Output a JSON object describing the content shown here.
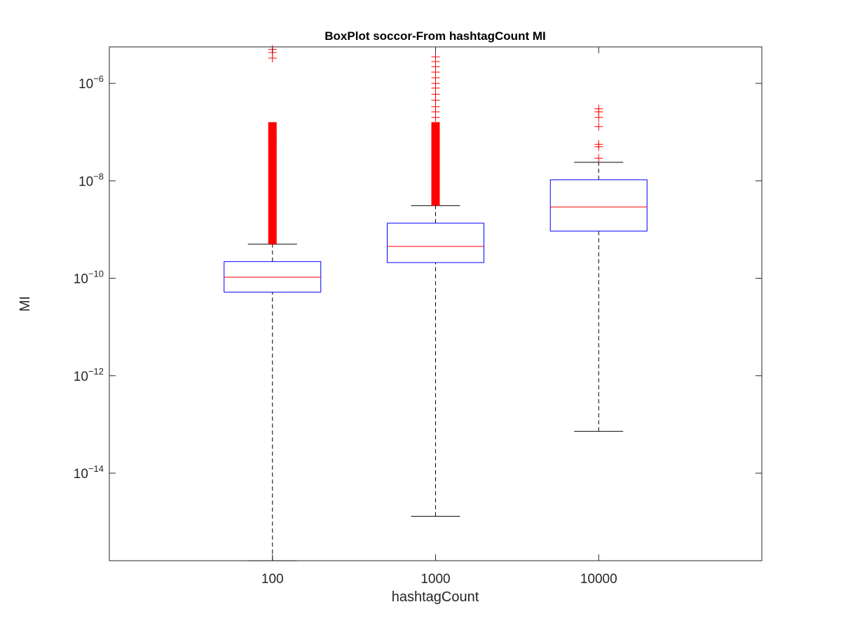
{
  "chart_data": {
    "type": "box",
    "title": "BoxPlot soccor-From hashtagCount MI",
    "xlabel": "hashtagCount",
    "ylabel": "MI",
    "categories": [
      "100",
      "1000",
      "10000"
    ],
    "y_scale": "log",
    "ylim": [
      1.6e-16,
      5.6e-06
    ],
    "y_ticks": [
      {
        "value": 1e-14,
        "base": "10",
        "exp": "−14"
      },
      {
        "value": 1e-12,
        "base": "10",
        "exp": "−12"
      },
      {
        "value": 1e-10,
        "base": "10",
        "exp": "−10"
      },
      {
        "value": 1e-08,
        "base": "10",
        "exp": "−8"
      },
      {
        "value": 1e-06,
        "base": "10",
        "exp": "−6"
      }
    ],
    "grid": false,
    "colors": {
      "box": "#0000ff",
      "median": "#ff0000",
      "whisker": "#000000",
      "outlier": "#ff0000",
      "axis": "#262626"
    },
    "boxes": [
      {
        "category": "100",
        "whisker_low": 1.6e-16,
        "q1": 5.2e-11,
        "median": 1.05e-10,
        "q3": 2.2e-10,
        "whisker_high": 5e-10,
        "outlier_range": [
          5e-10,
          1.6e-07
        ],
        "outliers": [
          1.2e-07,
          1e-07,
          8e-08,
          6e-08,
          4e-08,
          3.3e-06,
          4.3e-06,
          5e-06
        ]
      },
      {
        "category": "1000",
        "whisker_low": 1.3e-15,
        "q1": 2.1e-10,
        "median": 4.5e-10,
        "q3": 1.35e-09,
        "whisker_high": 3.1e-09,
        "outlier_range": [
          3.1e-09,
          1.6e-07
        ],
        "outliers": [
          2e-07,
          2.6e-07,
          3.3e-07,
          4.5e-07,
          6e-07,
          8e-07,
          1e-06,
          1.3e-06,
          1.7e-06,
          2.2e-06,
          2.8e-06,
          3.5e-06
        ]
      },
      {
        "category": "10000",
        "whisker_low": 7.2e-14,
        "q1": 9.3e-10,
        "median": 2.9e-09,
        "q3": 1.05e-08,
        "whisker_high": 2.4e-08,
        "outliers": [
          2.9e-08,
          5e-08,
          5.6e-08,
          1.3e-07,
          2e-07,
          2.6e-07,
          3e-07
        ]
      }
    ]
  }
}
